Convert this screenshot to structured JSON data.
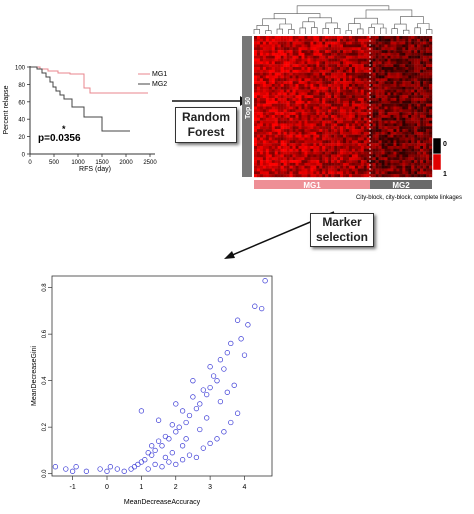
{
  "survival_panel": {
    "y_label": "Percent relapse",
    "x_label": "RFS (day)",
    "y_ticks": [
      "0",
      "20",
      "40",
      "60",
      "80",
      "100"
    ],
    "x_ticks": [
      "0",
      "500",
      "1000",
      "1500",
      "2000",
      "2500"
    ],
    "legend": [
      {
        "name": "MG1",
        "color": "#e8868c"
      },
      {
        "name": "MG2",
        "color": "#444444"
      }
    ],
    "p_value": "p=0.0356",
    "asterisk": "*"
  },
  "heatmap_panel": {
    "side_label": "Top 50",
    "scale_top": "0",
    "scale_bottom": "1",
    "groups": [
      {
        "name": "MG1",
        "color": "#ee8f96"
      },
      {
        "name": "MG2",
        "color": "#6a6a6a"
      }
    ],
    "caption": "City-block, city-block, complete linkages"
  },
  "random_forest_box": {
    "line1": "Random",
    "line2": "Forest"
  },
  "marker_selection_box": {
    "line1": "Marker",
    "line2": "selection"
  },
  "chart_data": {
    "type": "scatter",
    "xlabel": "MeanDecreaseAccuracy",
    "ylabel": "MeanDecreaseGini",
    "xlim": [
      -1.6,
      4.8
    ],
    "ylim": [
      -0.01,
      0.85
    ],
    "x_ticks": [
      -1,
      0,
      1,
      2,
      3,
      4
    ],
    "y_ticks": [
      0.0,
      0.2,
      0.4,
      0.6,
      0.8
    ],
    "marker_color": "#3a3ad6",
    "points": [
      [
        4.6,
        0.83
      ],
      [
        4.5,
        0.71
      ],
      [
        4.3,
        0.72
      ],
      [
        4.1,
        0.64
      ],
      [
        3.9,
        0.58
      ],
      [
        3.8,
        0.66
      ],
      [
        3.6,
        0.56
      ],
      [
        3.5,
        0.52
      ],
      [
        3.4,
        0.45
      ],
      [
        3.3,
        0.49
      ],
      [
        3.2,
        0.4
      ],
      [
        3.1,
        0.42
      ],
      [
        3.0,
        0.37
      ],
      [
        2.9,
        0.34
      ],
      [
        2.8,
        0.36
      ],
      [
        2.7,
        0.3
      ],
      [
        2.6,
        0.28
      ],
      [
        2.5,
        0.33
      ],
      [
        2.4,
        0.25
      ],
      [
        2.3,
        0.22
      ],
      [
        2.2,
        0.27
      ],
      [
        2.1,
        0.2
      ],
      [
        2.0,
        0.18
      ],
      [
        1.9,
        0.21
      ],
      [
        1.8,
        0.15
      ],
      [
        1.7,
        0.16
      ],
      [
        1.6,
        0.12
      ],
      [
        1.5,
        0.14
      ],
      [
        1.4,
        0.1
      ],
      [
        1.3,
        0.08
      ],
      [
        1.2,
        0.09
      ],
      [
        1.1,
        0.06
      ],
      [
        1.0,
        0.05
      ],
      [
        0.9,
        0.04
      ],
      [
        0.8,
        0.03
      ],
      [
        0.7,
        0.02
      ],
      [
        1.0,
        0.27
      ],
      [
        1.5,
        0.23
      ],
      [
        2.0,
        0.3
      ],
      [
        2.5,
        0.4
      ],
      [
        3.0,
        0.46
      ],
      [
        4.0,
        0.51
      ],
      [
        -1.5,
        0.03
      ],
      [
        -1.2,
        0.02
      ],
      [
        -1.0,
        0.01
      ],
      [
        -0.9,
        0.03
      ],
      [
        -0.6,
        0.01
      ],
      [
        -0.2,
        0.02
      ],
      [
        0.0,
        0.01
      ],
      [
        0.1,
        0.03
      ],
      [
        0.3,
        0.02
      ],
      [
        0.5,
        0.01
      ],
      [
        1.2,
        0.02
      ],
      [
        1.4,
        0.04
      ],
      [
        1.6,
        0.03
      ],
      [
        1.8,
        0.05
      ],
      [
        2.0,
        0.04
      ],
      [
        2.2,
        0.06
      ],
      [
        2.4,
        0.08
      ],
      [
        2.6,
        0.07
      ],
      [
        2.8,
        0.11
      ],
      [
        3.0,
        0.13
      ],
      [
        3.2,
        0.15
      ],
      [
        3.4,
        0.18
      ],
      [
        3.6,
        0.22
      ],
      [
        3.8,
        0.26
      ],
      [
        2.2,
        0.12
      ],
      [
        1.9,
        0.09
      ],
      [
        1.7,
        0.07
      ],
      [
        2.7,
        0.19
      ],
      [
        3.3,
        0.31
      ],
      [
        3.5,
        0.35
      ],
      [
        3.7,
        0.38
      ],
      [
        2.9,
        0.24
      ],
      [
        2.3,
        0.15
      ],
      [
        1.3,
        0.12
      ]
    ]
  }
}
